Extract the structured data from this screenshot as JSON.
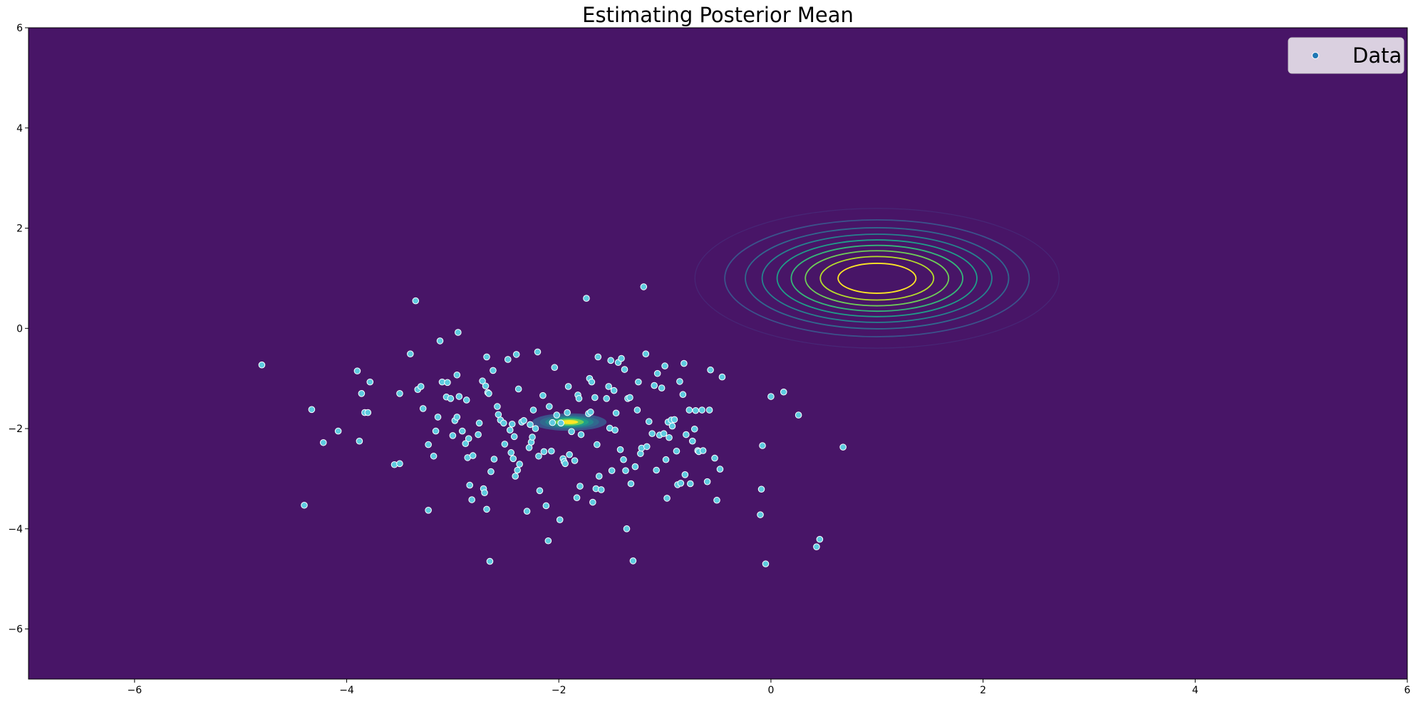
{
  "chart_data": {
    "type": "scatter",
    "title": "Estimating Posterior Mean",
    "xlabel": "",
    "ylabel": "",
    "xlim": [
      -7,
      6
    ],
    "ylim": [
      -7,
      6
    ],
    "x_ticks": [
      -6,
      -4,
      -2,
      0,
      2,
      4,
      6
    ],
    "y_ticks": [
      -6,
      -4,
      -2,
      0,
      2,
      4,
      6
    ],
    "x_tick_labels": [
      "−6",
      "−4",
      "−2",
      "0",
      "2",
      "4",
      "6"
    ],
    "y_tick_labels": [
      "−6",
      "−4",
      "−2",
      "0",
      "2",
      "4",
      "6"
    ],
    "grid": false,
    "legend": {
      "placement": "top-right",
      "entries": [
        {
          "label": "Data",
          "marker": "circle"
        }
      ]
    },
    "background_color": "#481567",
    "marker_fill": "#5ecbe0",
    "marker_edge": "#ffffff",
    "contours": [
      {
        "name": "prior",
        "style": "lines",
        "center": [
          1.0,
          1.0
        ],
        "sigma": [
          0.8,
          0.65
        ],
        "levels": [
          0.1,
          0.2,
          0.3,
          0.4,
          0.5,
          0.6,
          0.7,
          0.8,
          0.9
        ],
        "colors": [
          "#472c7a",
          "#3b528b",
          "#31688e",
          "#26828e",
          "#1f9e89",
          "#35b779",
          "#6ece58",
          "#b5de2b",
          "#fde725"
        ]
      },
      {
        "name": "posterior",
        "style": "filled",
        "center": [
          -1.9,
          -1.87
        ],
        "sigma": [
          0.18,
          0.09
        ],
        "levels": [
          0.15,
          0.3,
          0.45,
          0.6,
          0.75,
          0.9
        ],
        "colors": [
          "#3b528b",
          "#31688e",
          "#26828e",
          "#1f9e89",
          "#6ece58",
          "#fde725"
        ]
      }
    ],
    "series": [
      {
        "name": "Data",
        "points": [
          [
            -4.8,
            -0.73
          ],
          [
            -4.4,
            -3.53
          ],
          [
            -4.33,
            -1.62
          ],
          [
            -4.22,
            -2.28
          ],
          [
            -4.08,
            -2.05
          ],
          [
            -3.9,
            -0.85
          ],
          [
            -3.88,
            -2.25
          ],
          [
            -3.86,
            -1.3
          ],
          [
            -3.83,
            -1.68
          ],
          [
            -3.8,
            -1.68
          ],
          [
            -3.78,
            -1.07
          ],
          [
            -3.55,
            -2.72
          ],
          [
            -3.5,
            -2.7
          ],
          [
            -3.5,
            -1.3
          ],
          [
            -3.4,
            -0.51
          ],
          [
            -3.35,
            0.55
          ],
          [
            -3.33,
            -1.22
          ],
          [
            -3.3,
            -1.16
          ],
          [
            -3.28,
            -1.6
          ],
          [
            -3.23,
            -2.32
          ],
          [
            -3.23,
            -3.63
          ],
          [
            -3.18,
            -2.55
          ],
          [
            -3.16,
            -2.05
          ],
          [
            -3.14,
            -1.77
          ],
          [
            -3.12,
            -0.25
          ],
          [
            -3.1,
            -1.07
          ],
          [
            -3.06,
            -1.37
          ],
          [
            -3.05,
            -1.08
          ],
          [
            -3.02,
            -1.4
          ],
          [
            -3.0,
            -2.14
          ],
          [
            -2.98,
            -1.84
          ],
          [
            -2.96,
            -1.77
          ],
          [
            -2.96,
            -0.93
          ],
          [
            -2.95,
            -0.08
          ],
          [
            -2.94,
            -1.36
          ],
          [
            -2.91,
            -2.05
          ],
          [
            -2.88,
            -2.3
          ],
          [
            -2.87,
            -1.43
          ],
          [
            -2.86,
            -2.58
          ],
          [
            -2.85,
            -2.2
          ],
          [
            -2.84,
            -3.13
          ],
          [
            -2.82,
            -3.42
          ],
          [
            -2.81,
            -2.54
          ],
          [
            -2.76,
            -2.12
          ],
          [
            -2.75,
            -1.89
          ],
          [
            -2.72,
            -1.05
          ],
          [
            -2.71,
            -3.2
          ],
          [
            -2.7,
            -3.28
          ],
          [
            -2.69,
            -1.15
          ],
          [
            -2.68,
            -3.61
          ],
          [
            -2.68,
            -0.57
          ],
          [
            -2.67,
            -1.28
          ],
          [
            -2.66,
            -1.3
          ],
          [
            -2.65,
            -4.65
          ],
          [
            -2.64,
            -2.86
          ],
          [
            -2.62,
            -0.84
          ],
          [
            -2.61,
            -2.61
          ],
          [
            -2.58,
            -1.56
          ],
          [
            -2.57,
            -1.72
          ],
          [
            -2.55,
            -1.83
          ],
          [
            -2.52,
            -1.89
          ],
          [
            -2.51,
            -2.31
          ],
          [
            -2.48,
            -0.62
          ],
          [
            -2.46,
            -2.03
          ],
          [
            -2.45,
            -2.48
          ],
          [
            -2.44,
            -1.91
          ],
          [
            -2.43,
            -2.6
          ],
          [
            -2.42,
            -2.16
          ],
          [
            -2.41,
            -2.95
          ],
          [
            -2.4,
            -0.52
          ],
          [
            -2.39,
            -2.83
          ],
          [
            -2.38,
            -1.21
          ],
          [
            -2.37,
            -2.71
          ],
          [
            -2.35,
            -1.87
          ],
          [
            -2.33,
            -1.84
          ],
          [
            -2.3,
            -3.65
          ],
          [
            -2.28,
            -2.38
          ],
          [
            -2.27,
            -1.92
          ],
          [
            -2.26,
            -2.27
          ],
          [
            -2.25,
            -2.17
          ],
          [
            -2.24,
            -1.63
          ],
          [
            -2.22,
            -2.0
          ],
          [
            -2.2,
            -0.47
          ],
          [
            -2.19,
            -2.55
          ],
          [
            -2.18,
            -3.24
          ],
          [
            -2.15,
            -1.34
          ],
          [
            -2.14,
            -2.46
          ],
          [
            -2.12,
            -3.54
          ],
          [
            -2.1,
            -4.24
          ],
          [
            -2.09,
            -1.56
          ],
          [
            -2.07,
            -2.45
          ],
          [
            -2.06,
            -1.88
          ],
          [
            -2.04,
            -0.78
          ],
          [
            -2.02,
            -1.73
          ],
          [
            -1.99,
            -3.82
          ],
          [
            -1.98,
            -1.89
          ],
          [
            -1.96,
            -2.6
          ],
          [
            -1.95,
            -2.66
          ],
          [
            -1.94,
            -2.7
          ],
          [
            -1.92,
            -1.68
          ],
          [
            -1.91,
            -1.16
          ],
          [
            -1.9,
            -2.52
          ],
          [
            -1.88,
            -2.06
          ],
          [
            -1.85,
            -2.64
          ],
          [
            -1.83,
            -3.38
          ],
          [
            -1.82,
            -1.33
          ],
          [
            -1.81,
            -1.4
          ],
          [
            -1.8,
            -3.15
          ],
          [
            -1.79,
            -2.12
          ],
          [
            -1.74,
            0.6
          ],
          [
            -1.72,
            -1.7
          ],
          [
            -1.71,
            -1.0
          ],
          [
            -1.7,
            -1.67
          ],
          [
            -1.69,
            -1.07
          ],
          [
            -1.68,
            -3.47
          ],
          [
            -1.66,
            -1.38
          ],
          [
            -1.65,
            -3.2
          ],
          [
            -1.64,
            -2.32
          ],
          [
            -1.63,
            -0.57
          ],
          [
            -1.62,
            -2.95
          ],
          [
            -1.6,
            -3.22
          ],
          [
            -1.55,
            -1.4
          ],
          [
            -1.53,
            -1.16
          ],
          [
            -1.52,
            -1.99
          ],
          [
            -1.51,
            -0.64
          ],
          [
            -1.5,
            -2.84
          ],
          [
            -1.48,
            -1.24
          ],
          [
            -1.47,
            -2.03
          ],
          [
            -1.46,
            -1.69
          ],
          [
            -1.44,
            -0.68
          ],
          [
            -1.42,
            -2.42
          ],
          [
            -1.41,
            -0.6
          ],
          [
            -1.39,
            -2.62
          ],
          [
            -1.38,
            -0.82
          ],
          [
            -1.37,
            -2.84
          ],
          [
            -1.36,
            -4.0
          ],
          [
            -1.35,
            -1.4
          ],
          [
            -1.33,
            -1.38
          ],
          [
            -1.32,
            -3.1
          ],
          [
            -1.3,
            -4.64
          ],
          [
            -1.28,
            -2.76
          ],
          [
            -1.26,
            -1.63
          ],
          [
            -1.25,
            -1.07
          ],
          [
            -1.23,
            -2.5
          ],
          [
            -1.22,
            -2.39
          ],
          [
            -1.2,
            0.83
          ],
          [
            -1.18,
            -0.51
          ],
          [
            -1.17,
            -2.36
          ],
          [
            -1.15,
            -1.86
          ],
          [
            -1.12,
            -2.1
          ],
          [
            -1.1,
            -1.14
          ],
          [
            -1.08,
            -2.83
          ],
          [
            -1.07,
            -0.9
          ],
          [
            -1.05,
            -2.13
          ],
          [
            -1.03,
            -1.19
          ],
          [
            -1.01,
            -2.1
          ],
          [
            -1.0,
            -0.75
          ],
          [
            -0.99,
            -2.62
          ],
          [
            -0.98,
            -3.39
          ],
          [
            -0.97,
            -1.87
          ],
          [
            -0.96,
            -2.18
          ],
          [
            -0.94,
            -1.83
          ],
          [
            -0.93,
            -1.95
          ],
          [
            -0.91,
            -1.82
          ],
          [
            -0.89,
            -2.45
          ],
          [
            -0.88,
            -3.12
          ],
          [
            -0.86,
            -1.06
          ],
          [
            -0.85,
            -3.09
          ],
          [
            -0.83,
            -1.32
          ],
          [
            -0.82,
            -0.7
          ],
          [
            -0.81,
            -2.92
          ],
          [
            -0.8,
            -2.12
          ],
          [
            -0.77,
            -1.63
          ],
          [
            -0.76,
            -3.1
          ],
          [
            -0.74,
            -2.25
          ],
          [
            -0.72,
            -2.01
          ],
          [
            -0.71,
            -1.64
          ],
          [
            -0.69,
            -2.44
          ],
          [
            -0.68,
            -2.46
          ],
          [
            -0.65,
            -1.63
          ],
          [
            -0.64,
            -2.44
          ],
          [
            -0.6,
            -3.06
          ],
          [
            -0.58,
            -1.63
          ],
          [
            -0.57,
            -0.83
          ],
          [
            -0.53,
            -2.59
          ],
          [
            -0.51,
            -3.43
          ],
          [
            -0.48,
            -2.81
          ],
          [
            -0.46,
            -0.97
          ],
          [
            -0.1,
            -3.72
          ],
          [
            -0.09,
            -3.21
          ],
          [
            -0.08,
            -2.34
          ],
          [
            -0.05,
            -4.7
          ],
          [
            0.0,
            -1.36
          ],
          [
            0.12,
            -1.27
          ],
          [
            0.26,
            -1.73
          ],
          [
            0.43,
            -4.36
          ],
          [
            0.46,
            -4.21
          ],
          [
            0.68,
            -2.37
          ]
        ]
      }
    ]
  }
}
